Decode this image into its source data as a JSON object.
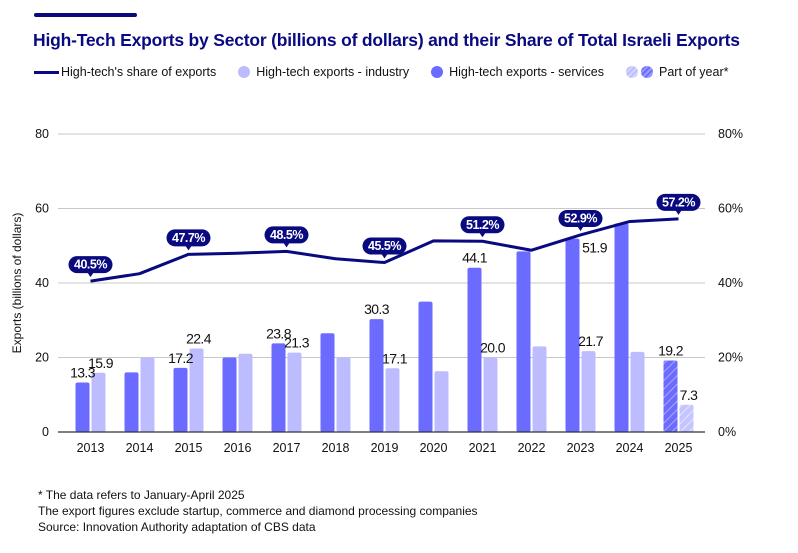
{
  "header": {
    "title": "High-Tech Exports by Sector (billions of dollars) and their Share of Total Israeli Exports"
  },
  "legend": {
    "items": [
      {
        "label": "High-tech's share of exports",
        "swatch": "line",
        "color": "#0a0a80"
      },
      {
        "label": "High-tech exports - industry",
        "swatch": "circle",
        "color": "#bcbcff"
      },
      {
        "label": "High-tech exports - services",
        "swatch": "circle",
        "color": "#6b6bff"
      },
      {
        "label": "Part of year*",
        "swatch": "hatched-circles",
        "color": "#6b6bff"
      }
    ]
  },
  "footnotes": [
    "* The data refers to January-April 2025",
    "The export figures exclude startup, commerce and diamond processing companies",
    "Source: Innovation Authority adaptation of CBS data"
  ],
  "colors": {
    "services": "#6b6bff",
    "industry": "#bcbcff",
    "share_line": "#0a0a80",
    "grid": "#c8c8c8",
    "axis": "#333333"
  },
  "chart_data": {
    "type": "bar",
    "title": "High-Tech Exports by Sector (billions of dollars) and their Share of Total Israeli Exports",
    "xlabel": "",
    "ylabel": "Exports (billions of dollars)",
    "ylim": [
      0,
      80
    ],
    "yticks": [
      0,
      20,
      40,
      60,
      80
    ],
    "y2lim": [
      0,
      80
    ],
    "y2ticks": [
      "0%",
      "20%",
      "40%",
      "60%",
      "80%"
    ],
    "grid": true,
    "legend_position": "top",
    "categories": [
      "2013",
      "2014",
      "2015",
      "2016",
      "2017",
      "2018",
      "2019",
      "2020",
      "2021",
      "2022",
      "2023",
      "2024",
      "2025"
    ],
    "partial_year_category": "2025",
    "series": [
      {
        "name": "High-tech exports - services",
        "type": "bar",
        "axis": "left",
        "values": [
          13.3,
          16.0,
          17.2,
          20.0,
          23.8,
          26.5,
          30.3,
          35.0,
          44.1,
          48.5,
          51.9,
          56.0,
          19.2
        ],
        "labels": [
          "13.3",
          "",
          "17.2",
          "",
          "23.8",
          "",
          "30.3",
          "",
          "44.1",
          "",
          "51.9",
          "",
          "19.2"
        ]
      },
      {
        "name": "High-tech exports - industry",
        "type": "bar",
        "axis": "left",
        "values": [
          15.9,
          20.0,
          22.4,
          21.0,
          21.3,
          20.0,
          17.1,
          16.3,
          20.0,
          23.0,
          21.7,
          21.5,
          7.3
        ],
        "labels": [
          "15.9",
          "",
          "22.4",
          "",
          "21.3",
          "",
          "17.1",
          "",
          "20.0",
          "",
          "21.7",
          "",
          "7.3"
        ]
      },
      {
        "name": "High-tech's share of exports",
        "type": "line",
        "axis": "right",
        "unit": "%",
        "values": [
          40.5,
          42.5,
          47.7,
          48.0,
          48.5,
          46.5,
          45.5,
          51.3,
          51.2,
          48.8,
          52.9,
          56.5,
          57.2
        ],
        "labels": [
          "40.5%",
          "",
          "47.7%",
          "",
          "48.5%",
          "",
          "45.5%",
          "",
          "51.2%",
          "",
          "52.9%",
          "",
          "57.2%"
        ]
      }
    ]
  }
}
